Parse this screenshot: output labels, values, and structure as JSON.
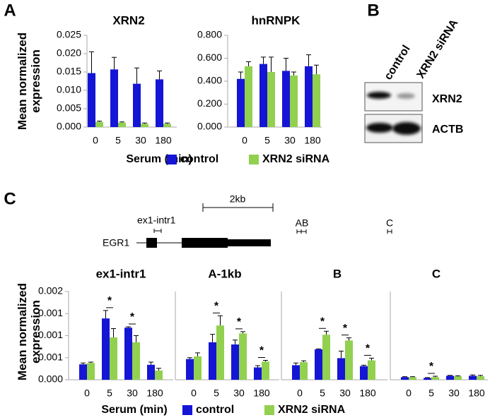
{
  "panel_labels": [
    "A",
    "B",
    "C"
  ],
  "blot": {
    "lanes": [
      "control",
      "XRN2 siRNA"
    ],
    "rows": [
      "XRN2",
      "ACTB"
    ]
  },
  "gene_diagram": {
    "scale": "2kb",
    "gene": "EGR1",
    "amplicons": [
      "ex1-intr1",
      "AB",
      "C"
    ]
  },
  "chart_data": [
    {
      "type": "bar",
      "title": "XRN2",
      "ylabel": "Mean normalized expression",
      "xlabel": "Serum (min)",
      "categories": [
        "0",
        "5",
        "30",
        "180"
      ],
      "ylim": [
        0,
        0.025
      ],
      "yticks": [
        {
          "value": 0,
          "label": "0.000"
        },
        {
          "value": 0.005,
          "label": "0.005"
        },
        {
          "value": 0.01,
          "label": "0.010"
        },
        {
          "value": 0.015,
          "label": "0.015"
        },
        {
          "value": 0.02,
          "label": "0.020"
        },
        {
          "value": 0.025,
          "label": "0.025"
        }
      ],
      "series": [
        {
          "name": "control",
          "color": "#1515d6",
          "values": [
            0.0147,
            0.0157,
            0.0118,
            0.013
          ],
          "errors": [
            0.0058,
            0.0033,
            0.0043,
            0.0023
          ]
        },
        {
          "name": "XRN2 siRNA",
          "color": "#92d050",
          "values": [
            0.0014,
            0.0012,
            0.0009,
            0.0009
          ],
          "errors": [
            0.0002,
            0.0002,
            0.0002,
            0.0002
          ]
        }
      ]
    },
    {
      "type": "bar",
      "title": "hnRNPK",
      "categories": [
        "0",
        "5",
        "30",
        "180"
      ],
      "ylim": [
        0,
        0.8
      ],
      "yticks": [
        {
          "value": 0,
          "label": "0.000"
        },
        {
          "value": 0.2,
          "label": "0.200"
        },
        {
          "value": 0.4,
          "label": "0.400"
        },
        {
          "value": 0.6,
          "label": "0.600"
        },
        {
          "value": 0.8,
          "label": "0.800"
        }
      ],
      "series": [
        {
          "color": "#1515d6",
          "values": [
            0.42,
            0.55,
            0.49,
            0.53
          ],
          "errors": [
            0.06,
            0.06,
            0.11,
            0.1
          ]
        },
        {
          "color": "#92d050",
          "values": [
            0.53,
            0.48,
            0.45,
            0.46
          ],
          "errors": [
            0.04,
            0.13,
            0.03,
            0.08
          ]
        }
      ]
    },
    {
      "type": "bar",
      "title": "ex1-intr1",
      "ylabel": "Mean normalized expression",
      "xlabel": "Serum (min)",
      "categories": [
        "0",
        "5",
        "30",
        "180"
      ],
      "ylim": [
        0,
        0.002
      ],
      "yticks": [
        {
          "value": 0,
          "label": "0.000"
        },
        {
          "value": 0.0005,
          "label": "0.001"
        },
        {
          "value": 0.001,
          "label": "0.001"
        },
        {
          "value": 0.0015,
          "label": "0.001"
        },
        {
          "value": 0.002,
          "label": "0.002"
        }
      ],
      "annotations": [
        null,
        "*",
        "*",
        null
      ],
      "series": [
        {
          "name": "control",
          "color": "#1515d6",
          "values": [
            0.00035,
            0.00139,
            0.00118,
            0.00034
          ],
          "errors": [
            3e-05,
            0.00018,
            2e-05,
            6e-05
          ]
        },
        {
          "name": "XRN2 siRNA",
          "color": "#92d050",
          "values": [
            0.00038,
            0.00096,
            0.00085,
            0.00021
          ],
          "errors": [
            2e-05,
            0.0002,
            0.00015,
            5e-05
          ]
        }
      ]
    },
    {
      "type": "bar",
      "title": "A-1kb",
      "categories": [
        "0",
        "5",
        "30",
        "180"
      ],
      "ylim": [
        0,
        0.002
      ],
      "annotations": [
        null,
        "*",
        "*",
        "*"
      ],
      "series": [
        {
          "color": "#1515d6",
          "values": [
            0.00047,
            0.00085,
            0.0008,
            0.00028
          ],
          "errors": [
            3e-05,
            0.00018,
            0.0001,
            4e-05
          ]
        },
        {
          "color": "#92d050",
          "values": [
            0.00053,
            0.00123,
            0.00105,
            0.00041
          ],
          "errors": [
            8e-05,
            0.00022,
            4e-05,
            3e-05
          ]
        }
      ]
    },
    {
      "type": "bar",
      "title": "B",
      "categories": [
        "0",
        "5",
        "30",
        "180"
      ],
      "ylim": [
        0,
        0.002
      ],
      "annotations": [
        null,
        "*",
        "*",
        "*"
      ],
      "series": [
        {
          "color": "#1515d6",
          "values": [
            0.00033,
            0.00069,
            0.00049,
            0.00031
          ],
          "errors": [
            5e-05,
            1e-05,
            0.00016,
            2e-05
          ]
        },
        {
          "color": "#92d050",
          "values": [
            0.0004,
            0.00102,
            0.00089,
            0.00044
          ],
          "errors": [
            3e-05,
            8e-05,
            6e-05,
            5e-05
          ]
        }
      ]
    },
    {
      "type": "bar",
      "title": "C",
      "categories": [
        "0",
        "5",
        "30",
        "180"
      ],
      "ylim": [
        0,
        0.002
      ],
      "annotations": [
        null,
        "*",
        null,
        null
      ],
      "series": [
        {
          "color": "#1515d6",
          "values": [
            6e-05,
            4e-05,
            9e-05,
            9e-05
          ],
          "errors": [
            1e-05,
            1e-05,
            1e-05,
            2e-05
          ]
        },
        {
          "color": "#92d050",
          "values": [
            6e-05,
            6e-05,
            8e-05,
            8e-05
          ],
          "errors": [
            1e-05,
            2e-05,
            1e-05,
            2e-05
          ]
        }
      ]
    }
  ]
}
